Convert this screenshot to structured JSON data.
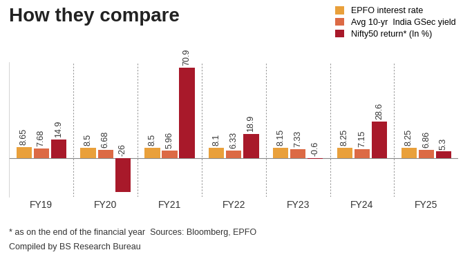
{
  "chart_data": {
    "type": "bar",
    "title": "How they compare",
    "categories": [
      "FY19",
      "FY20",
      "FY21",
      "FY22",
      "FY23",
      "FY24",
      "FY25"
    ],
    "series": [
      {
        "name": "EPFO interest rate",
        "color": "#e9a03b",
        "values": [
          8.65,
          8.5,
          8.5,
          8.1,
          8.15,
          8.25,
          8.25
        ]
      },
      {
        "name": "Avg 10-yr  India GSec yield",
        "color": "#dc6a45",
        "values": [
          7.68,
          6.68,
          5.96,
          6.33,
          7.33,
          7.15,
          6.86
        ]
      },
      {
        "name": "Nifty50 return* (In %)",
        "color": "#a8192a",
        "values": [
          14.9,
          -26,
          70.9,
          18.9,
          -0.6,
          28.6,
          5.3
        ]
      }
    ],
    "ylim": [
      -30,
      75
    ],
    "data_labels": true,
    "tick_labels": "x",
    "legend": "upper right",
    "annotations": [
      "* as on the end of the financial year  Sources: Bloomberg, EPFO",
      "Compiled by BS Research Bureau"
    ]
  }
}
